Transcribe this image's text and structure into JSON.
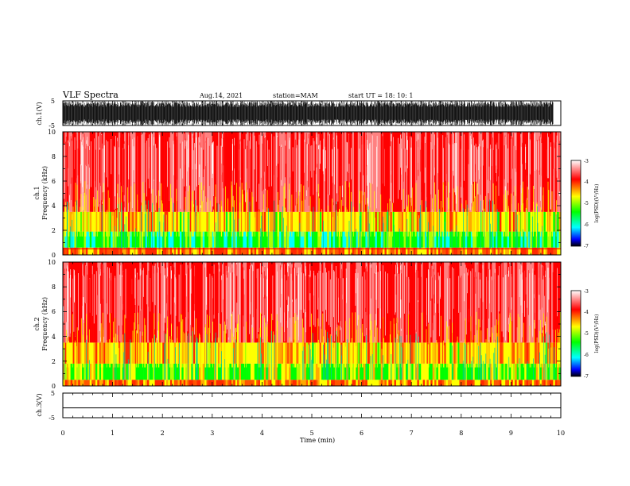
{
  "header": {
    "title": "VLF Spectra",
    "date": "Aug.14, 2021",
    "station": "station=MAM",
    "start": "start UT = 18: 10: 1"
  },
  "chart_data": [
    {
      "type": "line",
      "panel": "ch1-waveform",
      "ylabel": "ch.1(V)",
      "ylim": [
        -5,
        5
      ],
      "yticks": [
        "5",
        "-5"
      ],
      "xlim": [
        0,
        10
      ],
      "description_values": {
        "amplitude_min": -5,
        "amplitude_max": 5,
        "data_end_min": 9.85
      }
    },
    {
      "type": "heatmap",
      "panel": "ch1-spectrogram",
      "ylabel": "ch.1\nFrequency (kHz)",
      "ylabel_line1": "ch.1",
      "ylabel_line2": "Frequency (kHz)",
      "ylim": [
        0,
        10
      ],
      "yticks": [
        "0",
        "2",
        "4",
        "6",
        "8",
        "10"
      ],
      "xlim": [
        0,
        10
      ],
      "colorbar": {
        "label": "log(PSD)(V²/Hz)",
        "range": [
          -7,
          -3
        ],
        "ticks": [
          "-3",
          "-4",
          "-5",
          "-6",
          "-7"
        ]
      },
      "bands": [
        {
          "f_low": 0,
          "f_high": 0.6,
          "level": -3.9
        },
        {
          "f_low": 0.6,
          "f_high": 1.9,
          "level": -5.1
        },
        {
          "f_low": 1.9,
          "f_high": 3.5,
          "level": -4.3
        },
        {
          "f_low": 3.5,
          "f_high": 10,
          "level": -3.3
        }
      ],
      "dominant_line_khz": 0.5
    },
    {
      "type": "heatmap",
      "panel": "ch2-spectrogram",
      "ylabel": "ch.2\nFrequency (kHz)",
      "ylabel_line1": "ch.2",
      "ylabel_line2": "Frequency (kHz)",
      "ylim": [
        0,
        10
      ],
      "yticks": [
        "0",
        "2",
        "4",
        "6",
        "8",
        "10"
      ],
      "xlim": [
        0,
        10
      ],
      "colorbar": {
        "label": "log(PSD)(V²/Hz)",
        "range": [
          -7,
          -3
        ],
        "ticks": [
          "-3",
          "-4",
          "-5",
          "-6",
          "-7"
        ]
      },
      "bands": [
        {
          "f_low": 0,
          "f_high": 0.5,
          "level": -3.9
        },
        {
          "f_low": 0.5,
          "f_high": 1.8,
          "level": -4.7
        },
        {
          "f_low": 1.8,
          "f_high": 3.5,
          "level": -4.2
        },
        {
          "f_low": 3.5,
          "f_high": 10,
          "level": -3.3
        }
      ]
    },
    {
      "type": "line",
      "panel": "ch3-waveform",
      "ylabel": "ch.3(V)",
      "ylim": [
        -5,
        5
      ],
      "yticks": [
        "5",
        "-5"
      ],
      "xlim": [
        0,
        10
      ],
      "value": -1.0
    }
  ],
  "x_axis": {
    "label": "Time (min)",
    "ticks": [
      "0",
      "1",
      "2",
      "3",
      "4",
      "5",
      "6",
      "7",
      "8",
      "9",
      "10"
    ]
  },
  "colors": {
    "high": "#ff0000",
    "mid": "#ffff00",
    "low": "#00ff00",
    "lower": "#00ffff",
    "lowest": "#0000ff",
    "floor": "#000000"
  }
}
